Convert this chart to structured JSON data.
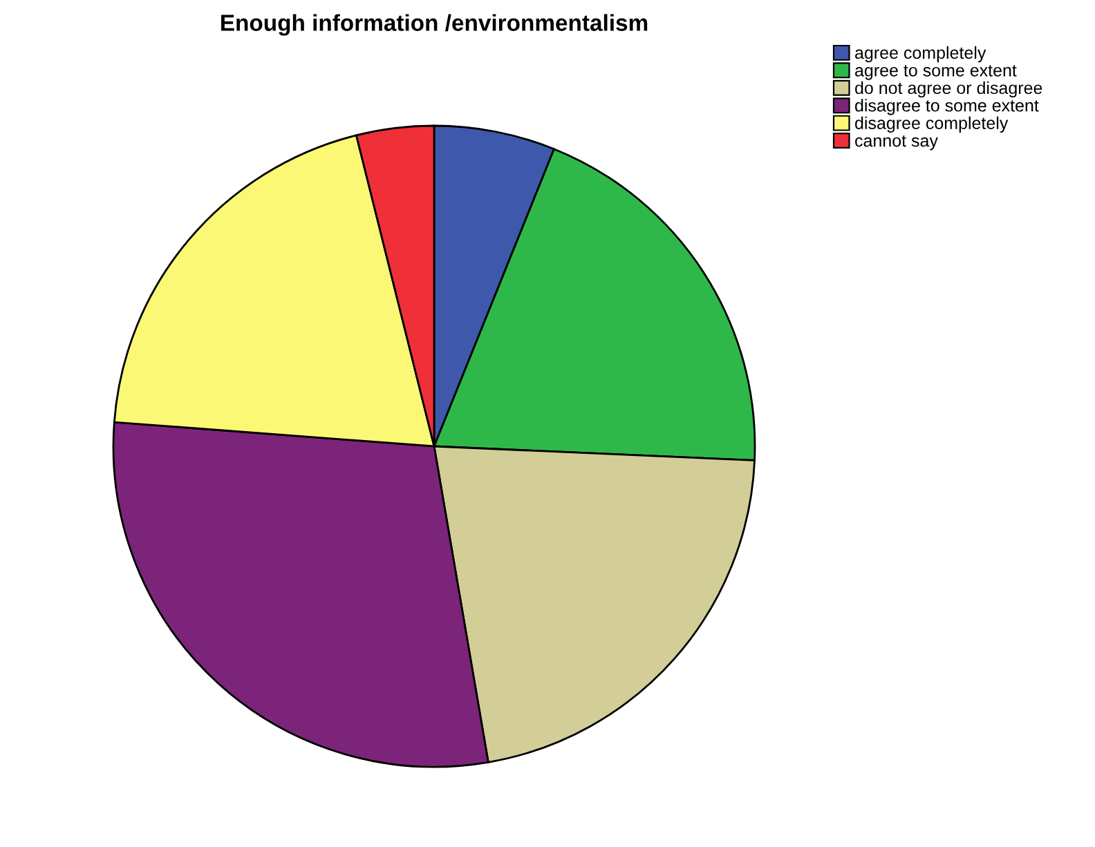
{
  "chart_data": {
    "type": "pie",
    "title": "Enough information /environmentalism",
    "categories": [
      "agree completely",
      "agree to some extent",
      "do not agree or disagree",
      "disagree to some extent",
      "disagree completely",
      "cannot say"
    ],
    "values": [
      6.1,
      19.6,
      21.6,
      28.9,
      19.9,
      3.9
    ],
    "colors": [
      "#3e58ac",
      "#2fb84a",
      "#d3ce97",
      "#7b2479",
      "#fbf875",
      "#ef3038"
    ],
    "legend": "top right"
  }
}
